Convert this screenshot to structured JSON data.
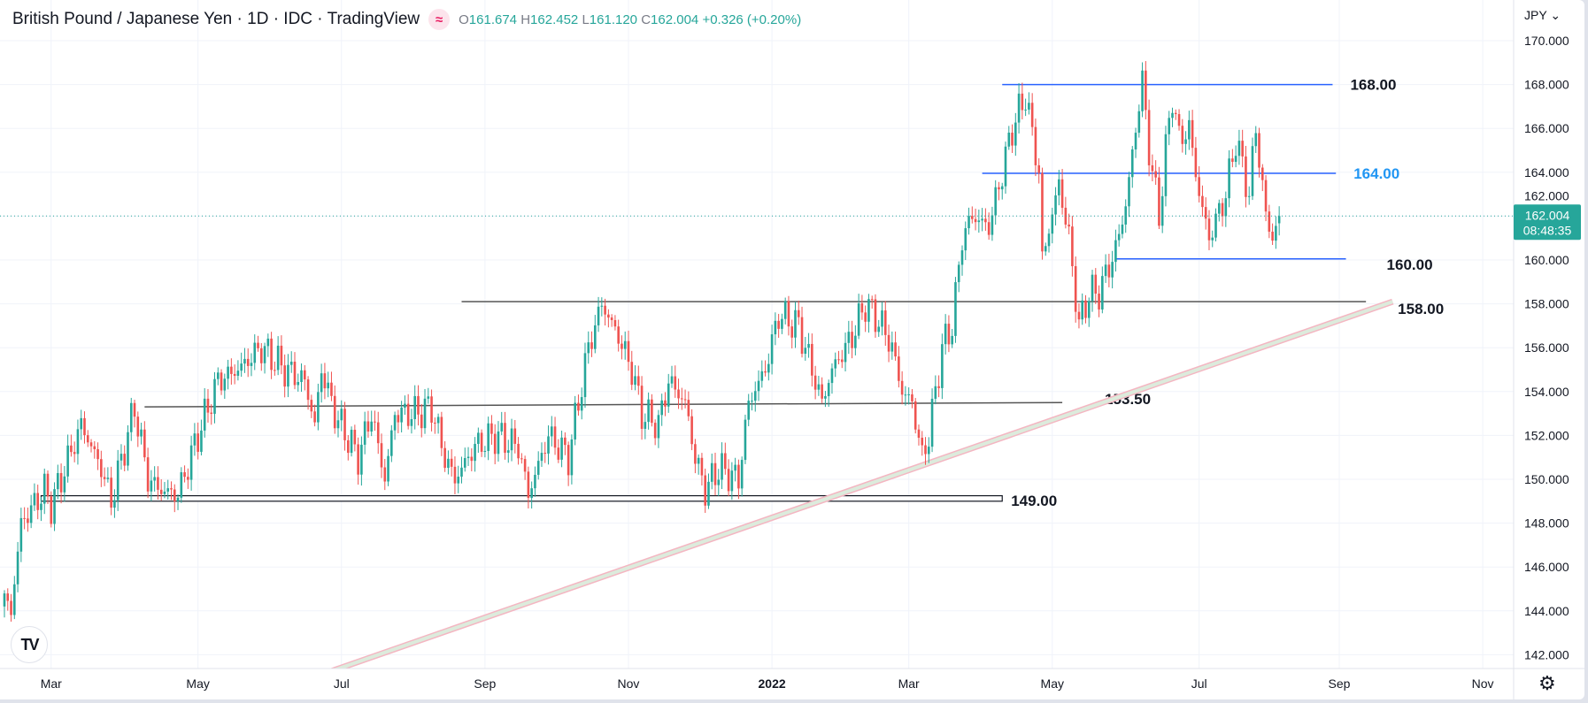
{
  "header": {
    "title": "British Pound / Japanese Yen · 1D · IDC · TradingView",
    "market_icon": "≈",
    "ohlc": {
      "o_label": "O",
      "o": "161.674",
      "h_label": "H",
      "h": "162.452",
      "l_label": "L",
      "l": "161.120",
      "c_label": "C",
      "c": "162.004",
      "change": "+0.326 (+0.20%)"
    }
  },
  "price_axis": {
    "currency": "JPY",
    "currency_chevron": "⌄",
    "ticks": [
      "170.000",
      "168.000",
      "166.000",
      "164.000",
      "162.000",
      "160.000",
      "158.000",
      "156.000",
      "154.000",
      "152.000",
      "150.000",
      "148.000",
      "146.000",
      "144.000",
      "142.000"
    ],
    "current_price": "162.004",
    "countdown": "08:48:35"
  },
  "time_axis": {
    "ticks": [
      {
        "label": "Mar",
        "day": 14
      },
      {
        "label": "May",
        "day": 58
      },
      {
        "label": "Jul",
        "day": 101
      },
      {
        "label": "Sep",
        "day": 144
      },
      {
        "label": "Nov",
        "day": 187
      },
      {
        "label": "2022",
        "day": 230,
        "bold": true
      },
      {
        "label": "Mar",
        "day": 271
      },
      {
        "label": "May",
        "day": 314
      },
      {
        "label": "Jul",
        "day": 358
      },
      {
        "label": "Sep",
        "day": 400
      },
      {
        "label": "Nov",
        "day": 443
      }
    ]
  },
  "logo_text": "TV",
  "settings_icon": "gear-icon",
  "colors": {
    "up": "#26a69a",
    "down": "#ef5350",
    "level_blue": "#2962ff",
    "level_gray": "#555555",
    "label_blue": "#2196f3",
    "price_tag": "#26a69a"
  },
  "chart_data": {
    "type": "candlestick",
    "title": "British Pound / Japanese Yen · 1D",
    "ylim": [
      141.2,
      171.2
    ],
    "ylabel": "JPY",
    "close_path": [
      [
        0,
        144.5
      ],
      [
        2,
        144
      ],
      [
        5,
        148
      ],
      [
        12,
        149.5
      ],
      [
        14,
        148.8
      ],
      [
        23,
        152.5
      ],
      [
        29,
        150.5
      ],
      [
        32,
        149
      ],
      [
        39,
        153.3
      ],
      [
        43,
        150
      ],
      [
        47,
        149.5
      ],
      [
        52,
        149.3
      ],
      [
        58,
        152
      ],
      [
        64,
        154.5
      ],
      [
        70,
        155
      ],
      [
        77,
        156
      ],
      [
        84,
        155
      ],
      [
        90,
        154.5
      ],
      [
        93,
        152.5
      ],
      [
        95,
        155
      ],
      [
        99,
        153
      ],
      [
        106,
        151
      ],
      [
        110,
        153
      ],
      [
        114,
        150
      ],
      [
        117,
        153
      ],
      [
        123,
        153
      ],
      [
        128,
        153.3
      ],
      [
        132,
        151
      ],
      [
        135,
        150
      ],
      [
        141,
        151.5
      ],
      [
        147,
        152
      ],
      [
        154,
        151.5
      ],
      [
        157,
        149.3
      ],
      [
        163,
        152
      ],
      [
        169,
        151
      ],
      [
        175,
        156
      ],
      [
        179,
        158
      ],
      [
        184,
        156.5
      ],
      [
        188,
        155
      ],
      [
        191,
        153
      ],
      [
        196,
        152.5
      ],
      [
        199,
        154.5
      ],
      [
        204,
        153.5
      ],
      [
        207,
        151
      ],
      [
        210,
        149.5
      ],
      [
        214,
        150.5
      ],
      [
        220,
        150
      ],
      [
        223,
        153.5
      ],
      [
        228,
        155
      ],
      [
        232,
        157.5
      ],
      [
        238,
        157
      ],
      [
        242,
        155
      ],
      [
        245,
        153.5
      ],
      [
        248,
        155
      ],
      [
        254,
        156.5
      ],
      [
        258,
        158
      ],
      [
        263,
        157
      ],
      [
        266,
        156
      ],
      [
        269,
        154
      ],
      [
        272,
        153.5
      ],
      [
        275,
        151
      ],
      [
        277,
        152
      ],
      [
        281,
        156
      ],
      [
        284,
        157
      ],
      [
        287,
        161
      ],
      [
        290,
        162
      ],
      [
        295,
        161.5
      ],
      [
        299,
        164
      ],
      [
        302,
        166
      ],
      [
        306,
        167.5
      ],
      [
        310,
        164
      ],
      [
        311,
        160
      ],
      [
        316,
        163.5
      ],
      [
        319,
        161
      ],
      [
        322,
        157
      ],
      [
        325,
        158.5
      ],
      [
        328,
        158.5
      ],
      [
        333,
        160.5
      ],
      [
        336,
        162.5
      ],
      [
        339,
        166
      ],
      [
        341,
        168.2
      ],
      [
        343,
        165
      ],
      [
        346,
        162
      ],
      [
        348,
        165
      ],
      [
        350,
        167.5
      ],
      [
        352,
        165.5
      ],
      [
        355,
        166
      ],
      [
        358,
        163
      ],
      [
        361,
        161
      ],
      [
        366,
        163
      ],
      [
        369,
        165.5
      ],
      [
        373,
        163
      ],
      [
        375,
        166
      ],
      [
        378,
        162
      ],
      [
        380,
        161
      ],
      [
        382,
        162.004
      ]
    ],
    "last_candle": {
      "open": 161.674,
      "high": 162.452,
      "low": 161.12,
      "close": 162.004
    },
    "drawings": [
      {
        "type": "horizontal",
        "price": 168.0,
        "from_day": 299,
        "to_day": 398,
        "color": "blue",
        "label": "168.00"
      },
      {
        "type": "horizontal",
        "price": 163.95,
        "from_day": 293,
        "to_day": 399,
        "color": "blue",
        "label": "164.00"
      },
      {
        "type": "horizontal",
        "price": 160.05,
        "from_day": 333,
        "to_day": 402,
        "color": "blue",
        "label": "160.00"
      },
      {
        "type": "horizontal",
        "price": 158.1,
        "from_day": 137,
        "to_day": 408,
        "color": "gray",
        "label": "158.00"
      },
      {
        "type": "line",
        "p1": [
          42,
          153.3
        ],
        "p2": [
          317,
          153.5
        ],
        "color": "gray",
        "label": "153.50"
      },
      {
        "type": "rectangle",
        "price_top": 149.25,
        "price_bottom": 149.0,
        "from_day": 11,
        "to_day": 299,
        "label": "149.00"
      },
      {
        "type": "trendline",
        "p1": [
          97,
          141.2
        ],
        "p2": [
          416,
          158.1
        ]
      }
    ]
  }
}
